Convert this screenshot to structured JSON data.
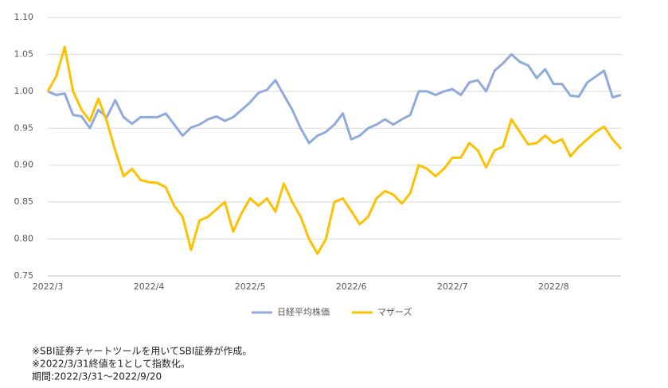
{
  "chart_data": {
    "type": "line",
    "categories": [
      "2022/3",
      null,
      null,
      null,
      null,
      null,
      null,
      null,
      null,
      null,
      null,
      null,
      "2022/4",
      null,
      null,
      null,
      null,
      null,
      null,
      null,
      null,
      null,
      null,
      null,
      "2022/5",
      null,
      null,
      null,
      null,
      null,
      null,
      null,
      null,
      null,
      null,
      null,
      "2022/6",
      null,
      null,
      null,
      null,
      null,
      null,
      null,
      null,
      null,
      null,
      null,
      "2022/7",
      null,
      null,
      null,
      null,
      null,
      null,
      null,
      null,
      null,
      null,
      null,
      "2022/8",
      null,
      null,
      null,
      null,
      null,
      null,
      null,
      null
    ],
    "series": [
      {
        "name": "日経平均株価",
        "color": "#8faadc",
        "values": [
          1.0,
          0.995,
          0.997,
          0.968,
          0.966,
          0.95,
          0.975,
          0.965,
          0.988,
          0.965,
          0.956,
          0.965,
          0.965,
          0.965,
          0.97,
          0.955,
          0.94,
          0.951,
          0.955,
          0.962,
          0.966,
          0.96,
          0.965,
          0.975,
          0.985,
          0.998,
          1.002,
          1.015,
          0.995,
          0.975,
          0.95,
          0.93,
          0.94,
          0.945,
          0.955,
          0.97,
          0.935,
          0.94,
          0.95,
          0.955,
          0.962,
          0.955,
          0.962,
          0.968,
          1.0,
          1.0,
          0.995,
          1.0,
          1.003,
          0.995,
          1.012,
          1.015,
          1.0,
          1.028,
          1.038,
          1.05,
          1.04,
          1.035,
          1.018,
          1.03,
          1.01,
          1.01,
          0.994,
          0.993,
          1.012,
          1.02,
          1.028,
          0.992,
          0.995
        ]
      },
      {
        "name": "マザーズ",
        "color": "#ffc000",
        "values": [
          1.0,
          1.02,
          1.06,
          1.0,
          0.975,
          0.96,
          0.99,
          0.96,
          0.92,
          0.885,
          0.895,
          0.88,
          0.877,
          0.876,
          0.87,
          0.845,
          0.83,
          0.785,
          0.825,
          0.83,
          0.84,
          0.85,
          0.81,
          0.835,
          0.855,
          0.845,
          0.855,
          0.837,
          0.875,
          0.85,
          0.83,
          0.8,
          0.78,
          0.8,
          0.85,
          0.855,
          0.838,
          0.82,
          0.83,
          0.855,
          0.865,
          0.86,
          0.848,
          0.862,
          0.9,
          0.895,
          0.885,
          0.895,
          0.91,
          0.91,
          0.93,
          0.92,
          0.897,
          0.92,
          0.925,
          0.962,
          0.945,
          0.928,
          0.93,
          0.94,
          0.93,
          0.935,
          0.912,
          0.925,
          0.935,
          0.945,
          0.952,
          0.935,
          0.922
        ]
      }
    ],
    "ylim": [
      0.75,
      1.1
    ],
    "yticks": [
      0.75,
      {
        "value": 0.8,
        "label": "0.80"
      },
      0.85,
      {
        "value": 0.9,
        "label": "0.90"
      },
      0.95,
      {
        "value": 1.0,
        "label": "1.00"
      },
      1.05,
      {
        "value": 1.1,
        "label": "1.10"
      }
    ],
    "grid": true,
    "legend": "bottom",
    "notes": [
      "※SBI証券チャートツールを用いてSBI証券が作成。",
      "※2022/3/31終値を1として指数化。",
      "期間:2022/3/31～2022/9/20"
    ]
  }
}
